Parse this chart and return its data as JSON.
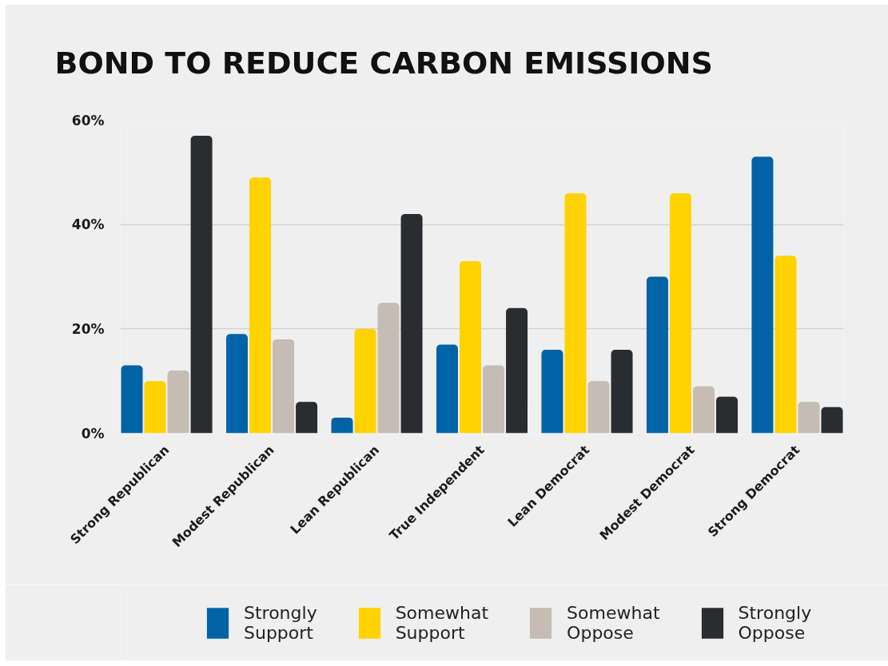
{
  "chart_data": {
    "type": "bar",
    "title": "BOND TO REDUCE CARBON EMISSIONS",
    "categories": [
      "Strong Republican",
      "Modest Republican",
      "Lean Republican",
      "True Independent",
      "Lean Democrat",
      "Modest Democrat",
      "Strong Democrat"
    ],
    "series": [
      {
        "name": "Strongly Support",
        "color": "#0063a6",
        "values": [
          13,
          19,
          3,
          17,
          16,
          30,
          53
        ]
      },
      {
        "name": "Somewhat Support",
        "color": "#ffd200",
        "values": [
          10,
          49,
          20,
          33,
          46,
          46,
          34
        ]
      },
      {
        "name": "Somewhat Oppose",
        "color": "#c5bcb3",
        "values": [
          12,
          18,
          25,
          13,
          10,
          9,
          6
        ]
      },
      {
        "name": "Strongly Oppose",
        "color": "#2a2d30",
        "values": [
          57,
          6,
          42,
          24,
          16,
          7,
          5
        ]
      }
    ],
    "ylim": [
      0,
      60
    ],
    "yticks": [
      {
        "value": 0,
        "label": "0%"
      },
      {
        "value": 20,
        "label": "20%"
      },
      {
        "value": 40,
        "label": "40%"
      },
      {
        "value": 60,
        "label": "60%"
      }
    ],
    "grid": "y",
    "legend": "bottom"
  }
}
